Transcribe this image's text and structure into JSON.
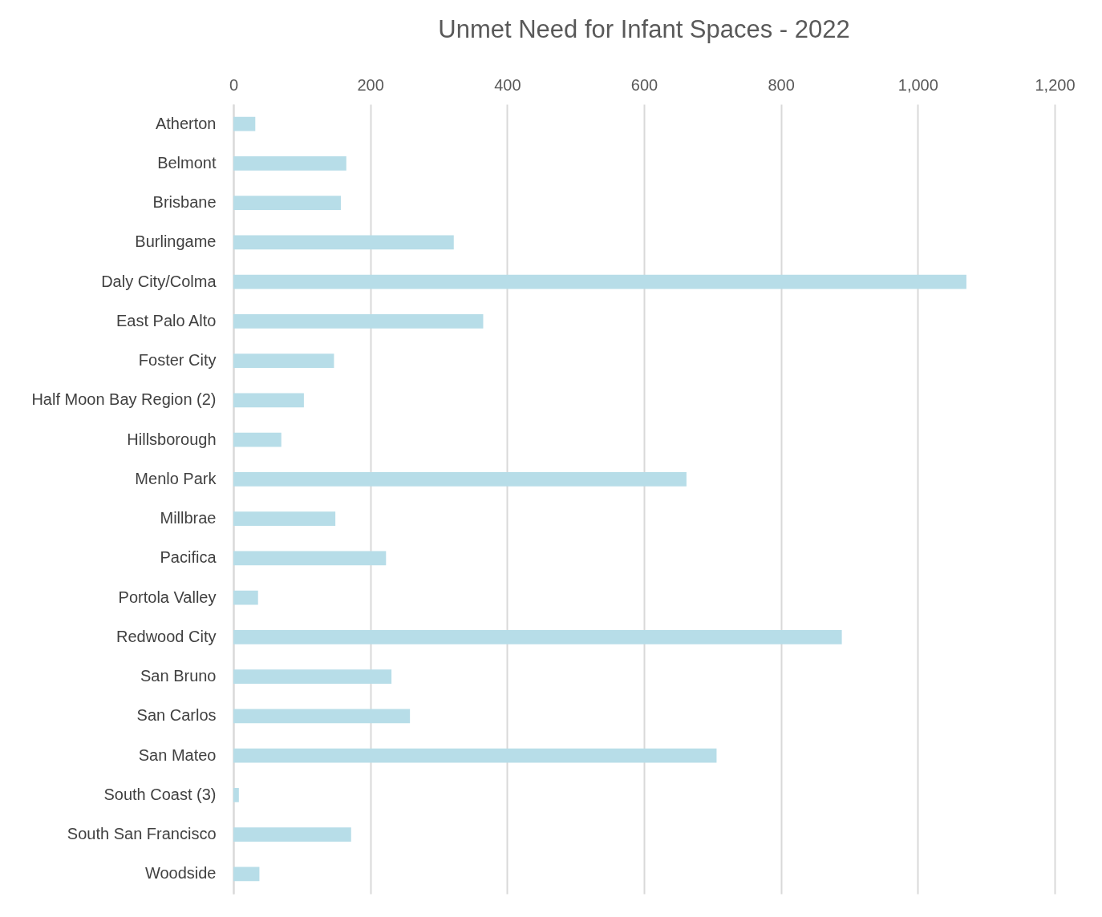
{
  "chart_data": {
    "type": "bar",
    "orientation": "horizontal",
    "title": "Unmet Need for Infant Spaces - 2022",
    "categories": [
      "Atherton",
      "Belmont",
      "Brisbane",
      "Burlingame",
      "Daly City/Colma",
      "East Palo Alto",
      "Foster City",
      "Half Moon Bay Region (2)",
      "Hillsborough",
      "Menlo Park",
      "Millbrae",
      "Pacifica",
      "Portola Valley",
      "Redwood City",
      "San Bruno",
      "San Carlos",
      "San Mateo",
      "South Coast (3)",
      "South San Francisco",
      "Woodside"
    ],
    "values": [
      32,
      165,
      157,
      322,
      1071,
      365,
      147,
      103,
      70,
      662,
      149,
      223,
      36,
      889,
      231,
      258,
      706,
      8,
      172,
      38
    ],
    "color": "#b7dde8",
    "xlim": [
      0,
      1200
    ],
    "xticks": [
      0,
      {
        "value": 200,
        "label": "200"
      },
      400,
      600,
      800,
      {
        "value": 1000,
        "label": "1,000"
      },
      {
        "value": 1200,
        "label": "1,200"
      }
    ],
    "grid": "x"
  }
}
